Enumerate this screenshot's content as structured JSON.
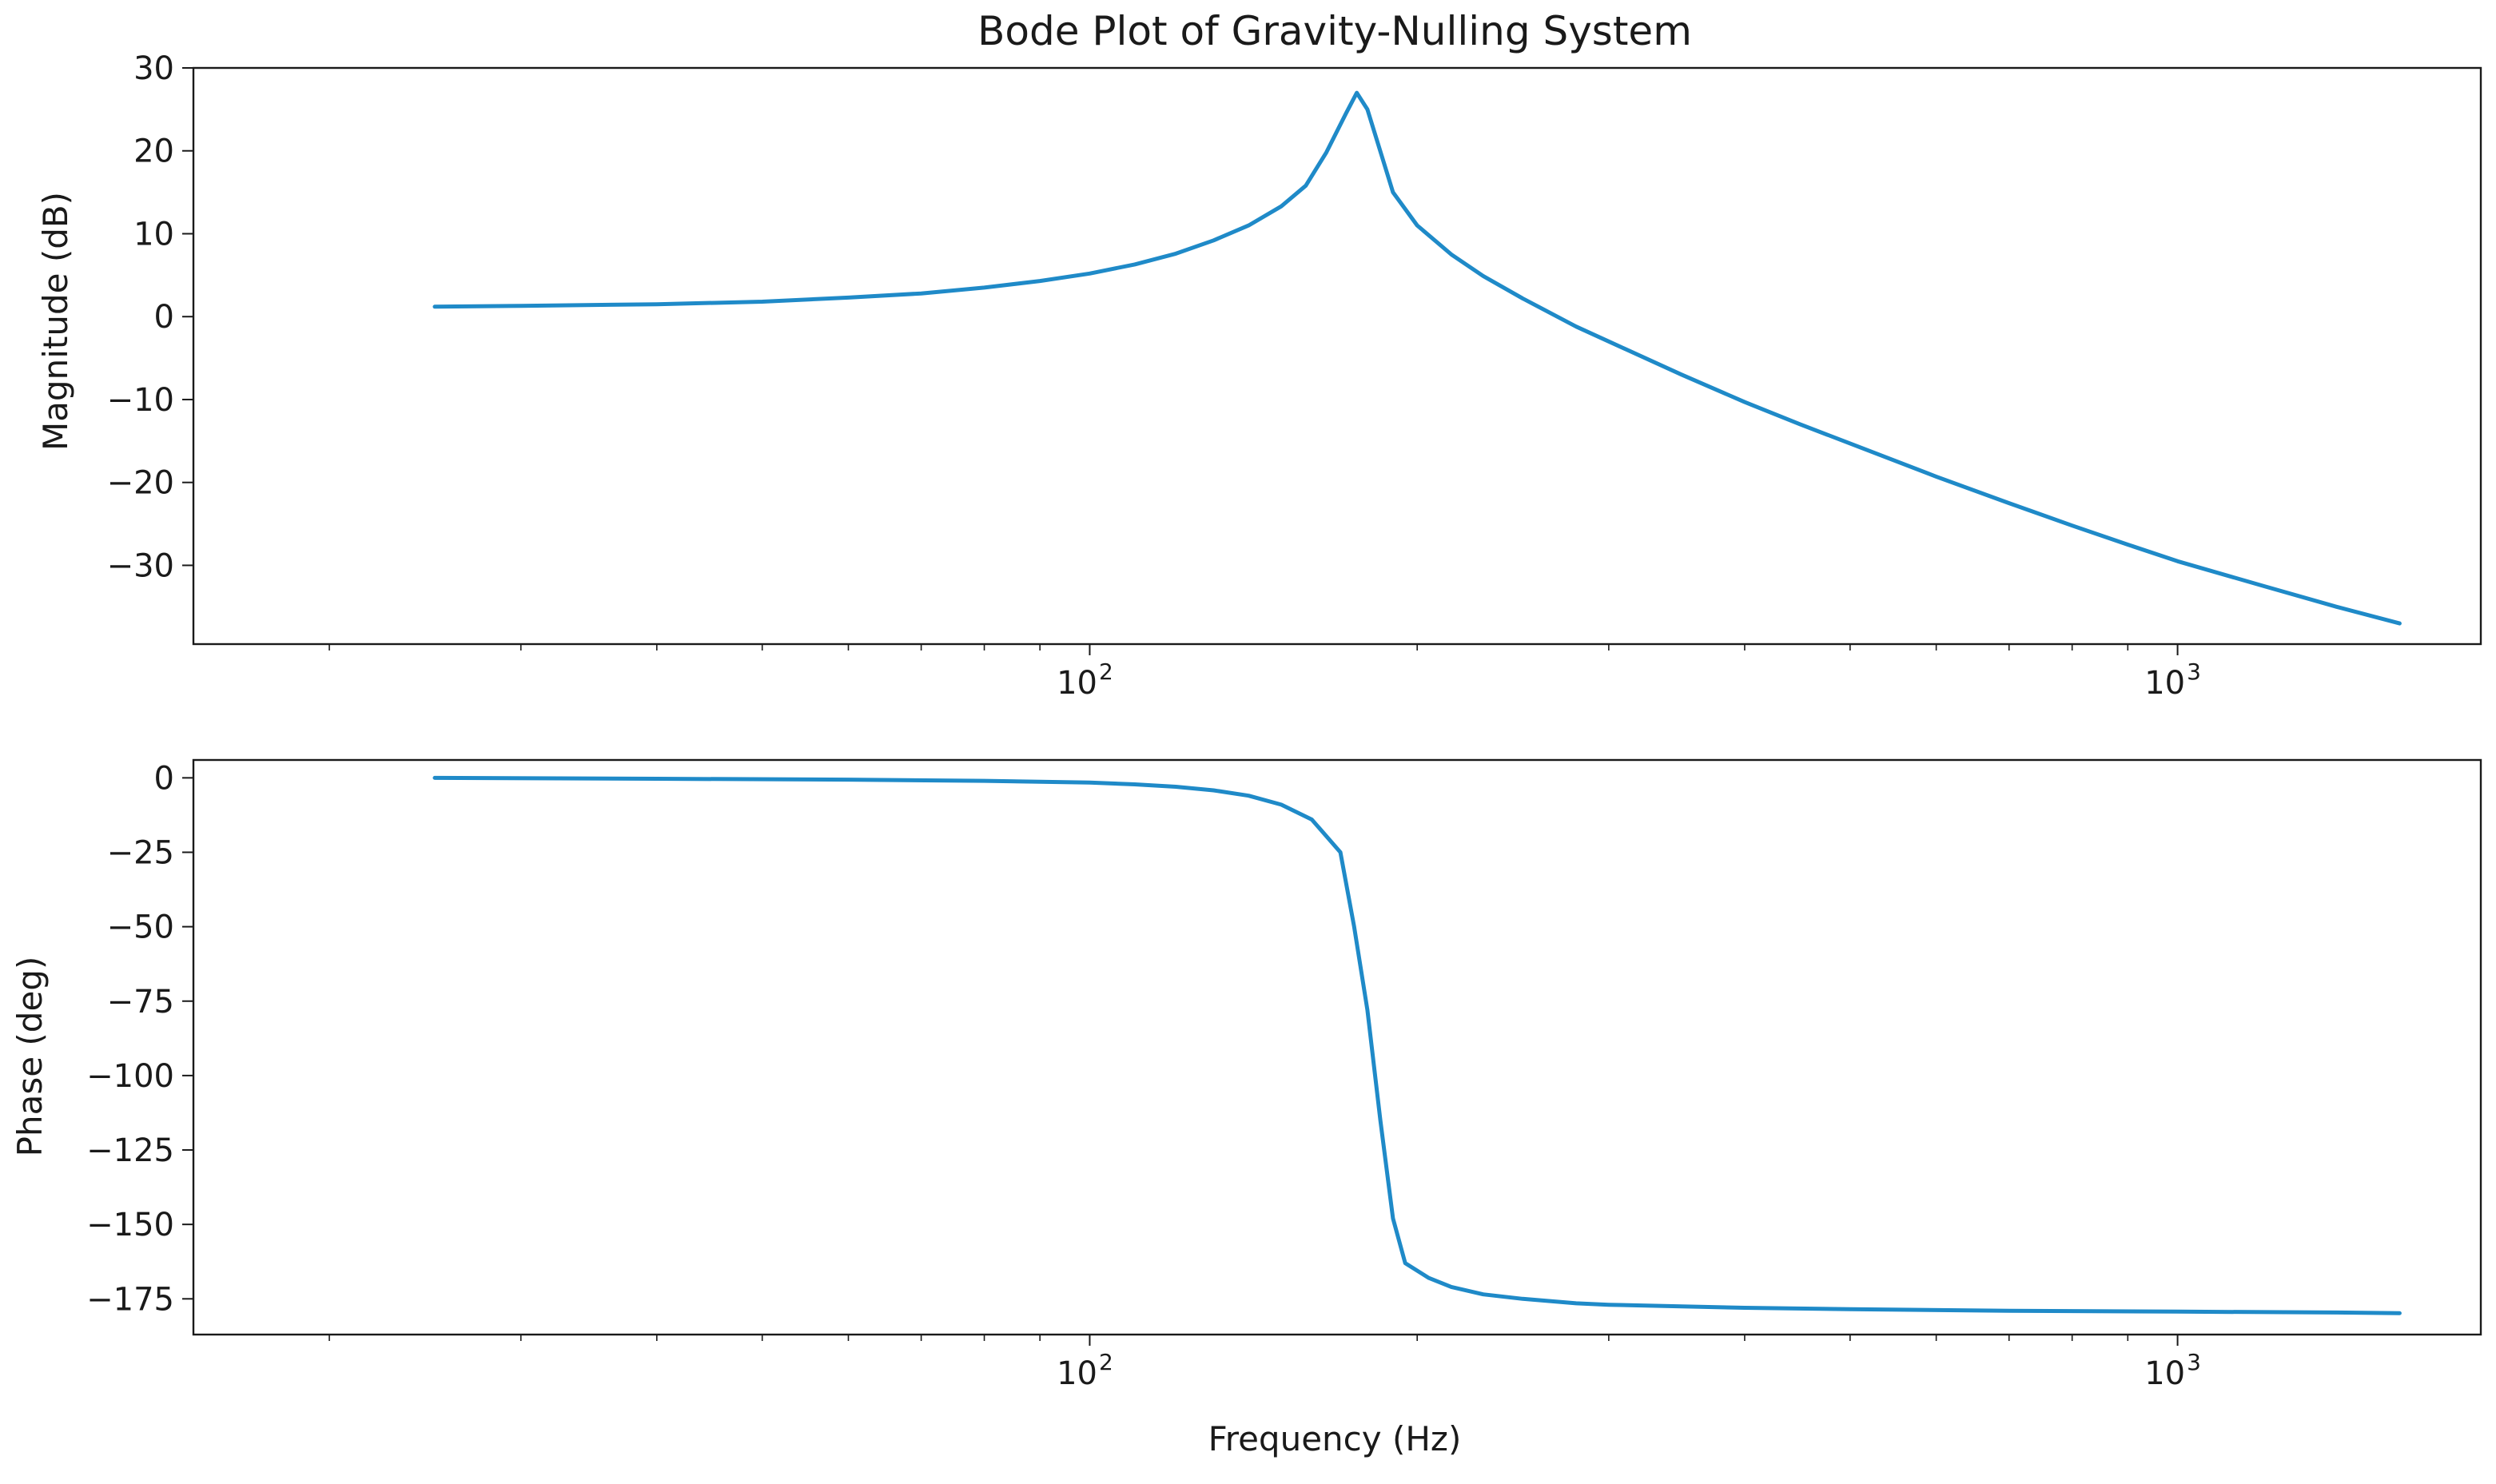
{
  "chart_data": [
    {
      "type": "line",
      "title": "Bode Plot of Gravity-Nulling System",
      "xlabel": "",
      "ylabel": "Magnitude (dB)",
      "x_scale": "log",
      "xlim": [
        15,
        1900
      ],
      "ylim": [
        -39.5,
        30
      ],
      "yticks": [
        30,
        20,
        10,
        0,
        -10,
        -20,
        -30
      ],
      "ytick_labels": [
        "30",
        "20",
        "10",
        "0",
        "−10",
        "−20",
        "−30"
      ],
      "xticks_major": [
        {
          "value": 100,
          "base": "10",
          "exp": "2"
        },
        {
          "value": 1000,
          "base": "10",
          "exp": "3"
        }
      ],
      "xticks_minor": [
        20,
        30,
        40,
        50,
        60,
        70,
        80,
        90,
        200,
        300,
        400,
        500,
        600,
        700,
        800,
        900
      ],
      "grid": false,
      "series": [
        {
          "color": "#1f8ac8",
          "x": [
            25,
            30,
            40,
            50,
            60,
            70,
            80,
            90,
            100,
            110,
            120,
            130,
            140,
            150,
            158,
            165,
            172,
            176,
            180,
            190,
            200,
            215,
            230,
            250,
            280,
            300,
            350,
            400,
            450,
            500,
            600,
            700,
            800,
            900,
            1000,
            1200,
            1400,
            1600
          ],
          "y": [
            1.2,
            1.3,
            1.5,
            1.8,
            2.3,
            2.8,
            3.5,
            4.3,
            5.2,
            6.3,
            7.6,
            9.2,
            11.0,
            13.3,
            15.8,
            19.8,
            24.5,
            27.0,
            25.0,
            15.0,
            11.0,
            7.5,
            4.9,
            2.2,
            -1.2,
            -3.0,
            -7.0,
            -10.3,
            -13.0,
            -15.3,
            -19.3,
            -22.5,
            -25.2,
            -27.5,
            -29.5,
            -32.5,
            -35.0,
            -37.0
          ]
        }
      ]
    },
    {
      "type": "line",
      "title": "",
      "xlabel": "Frequency (Hz)",
      "ylabel": "Phase (deg)",
      "x_scale": "log",
      "xlim": [
        15,
        1900
      ],
      "ylim": [
        -187,
        6
      ],
      "yticks": [
        0,
        -25,
        -50,
        -75,
        -100,
        -125,
        -150,
        -175
      ],
      "ytick_labels": [
        "0",
        "−25",
        "−50",
        "−75",
        "−100",
        "−125",
        "−150",
        "−175"
      ],
      "xticks_major": [
        {
          "value": 100,
          "base": "10",
          "exp": "2"
        },
        {
          "value": 1000,
          "base": "10",
          "exp": "3"
        }
      ],
      "xticks_minor": [
        20,
        30,
        40,
        50,
        60,
        70,
        80,
        90,
        200,
        300,
        400,
        500,
        600,
        700,
        800,
        900
      ],
      "grid": false,
      "series": [
        {
          "color": "#1f8ac8",
          "x": [
            25,
            40,
            60,
            80,
            100,
            110,
            120,
            130,
            140,
            150,
            160,
            170,
            175,
            180,
            185,
            190,
            195,
            205,
            215,
            230,
            250,
            280,
            300,
            400,
            500,
            700,
            1000,
            1400,
            1600
          ],
          "y": [
            0,
            -0.3,
            -0.6,
            -1.0,
            -1.6,
            -2.2,
            -3.0,
            -4.2,
            -6.0,
            -9.0,
            -14.0,
            -25.0,
            -50.0,
            -78.0,
            -115.0,
            -148.0,
            -163.0,
            -168.0,
            -171.0,
            -173.5,
            -175.0,
            -176.5,
            -177.0,
            -178.0,
            -178.5,
            -179.0,
            -179.3,
            -179.6,
            -179.8
          ]
        }
      ]
    }
  ]
}
